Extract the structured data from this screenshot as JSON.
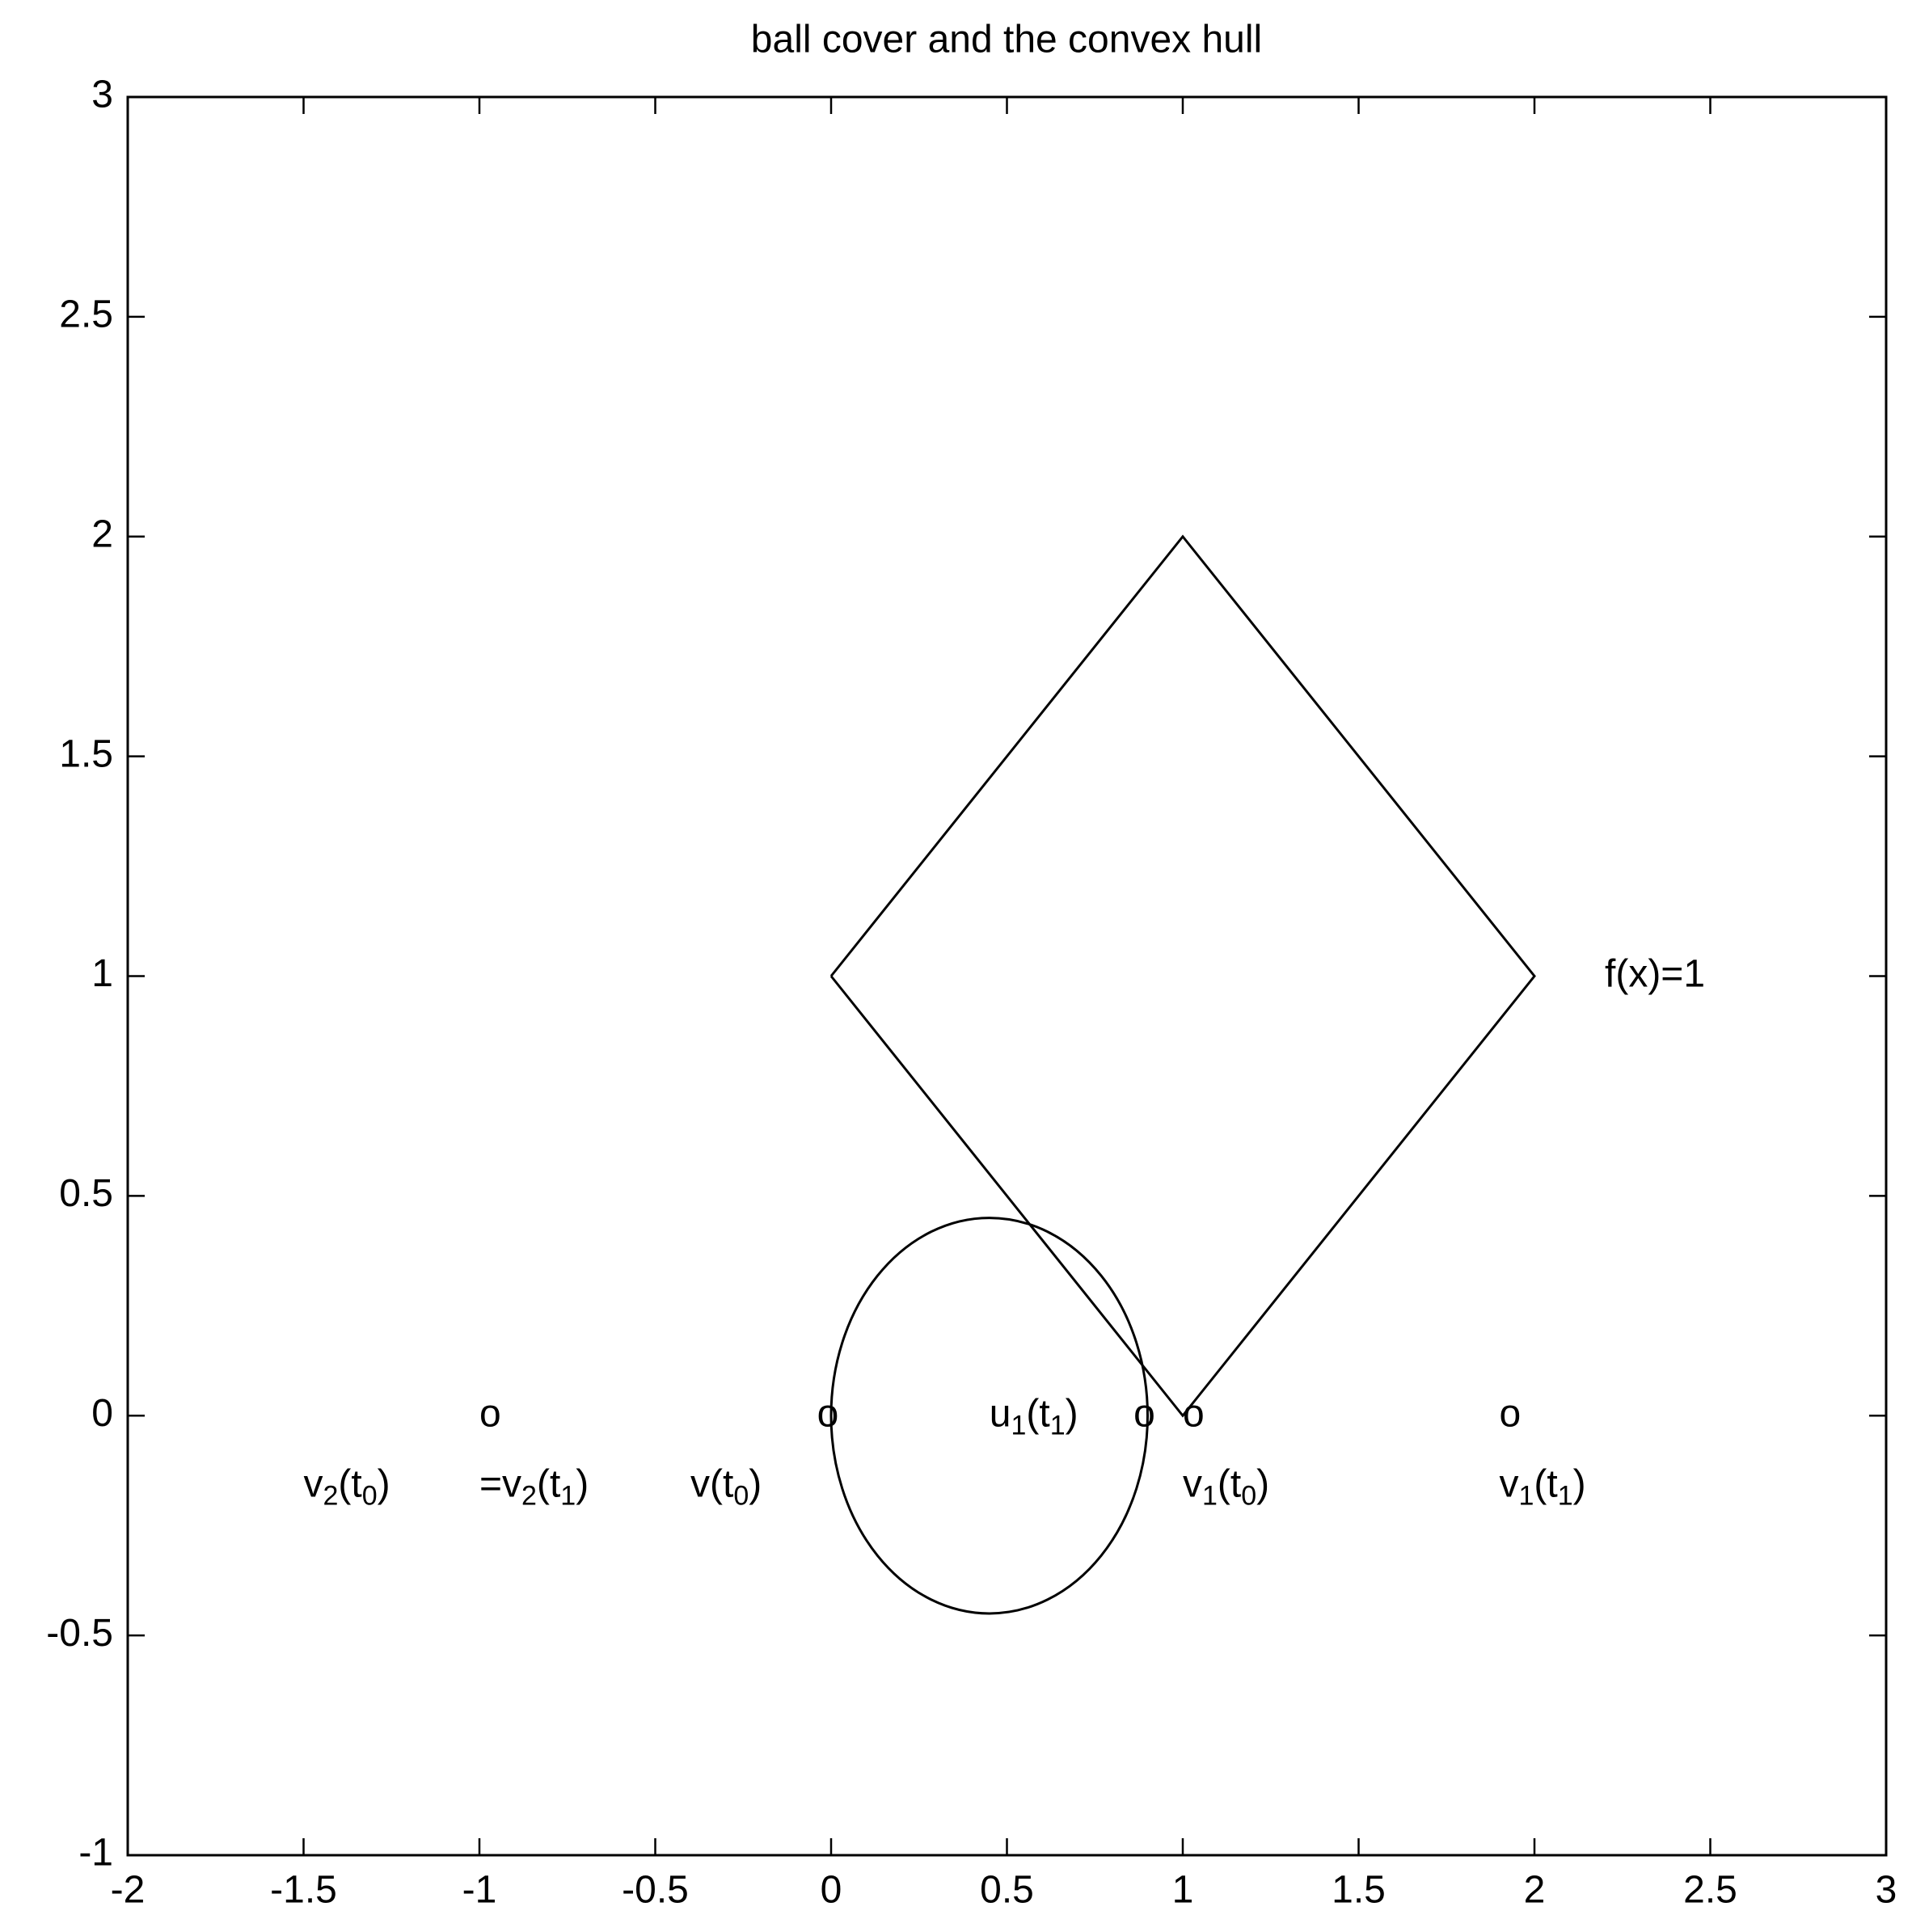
{
  "chart_data": {
    "type": "line",
    "title": "ball cover and the convex hull",
    "xlim": [
      -2,
      3
    ],
    "ylim": [
      -1,
      3
    ],
    "xticks": [
      -2,
      -1.5,
      -1,
      -0.5,
      0,
      0.5,
      1,
      1.5,
      2,
      2.5,
      3
    ],
    "yticks": [
      -1,
      -0.5,
      0,
      0.5,
      1,
      1.5,
      2,
      2.5,
      3
    ],
    "grid": false,
    "color": "#000000",
    "series": [
      {
        "x": [
          0,
          1,
          2,
          1,
          0
        ],
        "values": [
          1,
          2,
          1,
          0,
          1
        ]
      }
    ],
    "shapes": [
      {
        "type": "ellipse",
        "center": [
          0.45,
          0
        ],
        "radius": 0.45
      }
    ],
    "annotations": [
      {
        "x": -1,
        "y": 0,
        "parts": [
          {
            "text": "o"
          }
        ]
      },
      {
        "x": -0.04,
        "y": 0,
        "parts": [
          {
            "text": "o"
          }
        ]
      },
      {
        "x": 0.86,
        "y": 0,
        "parts": [
          {
            "text": "o"
          }
        ]
      },
      {
        "x": 1,
        "y": 0,
        "parts": [
          {
            "text": "o"
          }
        ]
      },
      {
        "x": 1.9,
        "y": 0,
        "parts": [
          {
            "text": "o"
          }
        ]
      },
      {
        "x": -1.5,
        "y": -0.16,
        "parts": [
          {
            "text": "v"
          },
          {
            "sub": "2"
          },
          {
            "text": "(t"
          },
          {
            "sub": "0"
          },
          {
            "text": ")"
          }
        ]
      },
      {
        "x": -1,
        "y": -0.16,
        "parts": [
          {
            "text": "="
          },
          {
            "text": "v"
          },
          {
            "sub": "2"
          },
          {
            "text": "(t"
          },
          {
            "sub": "1"
          },
          {
            "text": ")"
          }
        ]
      },
      {
        "x": -0.4,
        "y": -0.16,
        "parts": [
          {
            "text": "v(t"
          },
          {
            "sub": "0"
          },
          {
            "text": ")"
          }
        ]
      },
      {
        "x": 0.45,
        "y": 0,
        "parts": [
          {
            "text": "u"
          },
          {
            "sub": "1"
          },
          {
            "text": "(t"
          },
          {
            "sub": "1"
          },
          {
            "text": ")"
          }
        ]
      },
      {
        "x": 1,
        "y": -0.16,
        "parts": [
          {
            "text": "v"
          },
          {
            "sub": "1"
          },
          {
            "text": "(t"
          },
          {
            "sub": "0"
          },
          {
            "text": ")"
          }
        ]
      },
      {
        "x": 1.9,
        "y": -0.16,
        "parts": [
          {
            "text": "v"
          },
          {
            "sub": "1"
          },
          {
            "text": "(t"
          },
          {
            "sub": "1"
          },
          {
            "text": ")"
          }
        ]
      },
      {
        "x": 2.2,
        "y": 1,
        "parts": [
          {
            "text": "f(x)=1"
          }
        ]
      }
    ]
  }
}
